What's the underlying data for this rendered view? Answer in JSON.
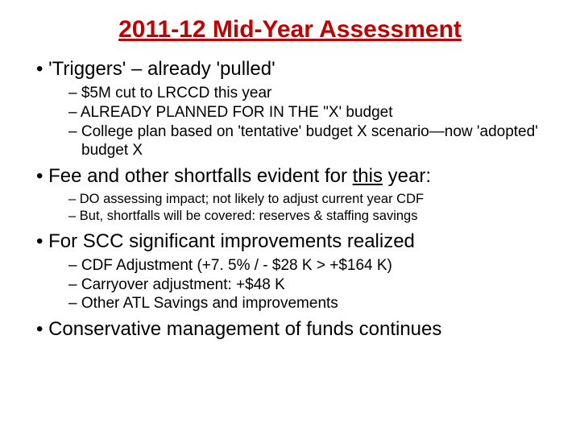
{
  "title": "2011-12 Mid-Year Assessment",
  "b1": "'Triggers' – already 'pulled'",
  "b1_1": "$5M cut to LRCCD this year",
  "b1_2": "ALREADY PLANNED FOR IN THE \"X' budget",
  "b1_3": "College plan based on 'tentative' budget X scenario—now 'adopted' budget X",
  "b2_pre": "Fee and other shortfalls evident for ",
  "b2_u": "this",
  "b2_post": " year:",
  "b2_1": "DO assessing impact; not likely to adjust current year CDF",
  "b2_2": "But, shortfalls will be covered: reserves & staffing savings",
  "b3": "For SCC significant improvements realized",
  "b3_1": "CDF Adjustment (+7. 5% / - $28 K > +$164 K)",
  "b3_2": "Carryover adjustment: +$48 K",
  "b3_3": "Other ATL Savings and improvements",
  "b4": "Conservative management of funds continues"
}
